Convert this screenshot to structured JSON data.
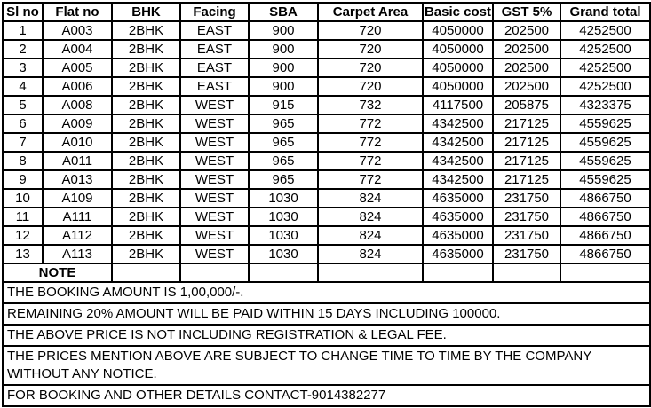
{
  "colors": {
    "background": "#ffffff",
    "border": "#000000",
    "text": "#000000"
  },
  "table": {
    "headers": [
      "Sl no",
      "Flat no",
      "BHK",
      "Facing",
      "SBA",
      "Carpet Area",
      "Basic cost",
      "GST 5%",
      "Grand total"
    ],
    "rows": [
      [
        "1",
        "A003",
        "2BHK",
        "EAST",
        "900",
        "720",
        "4050000",
        "202500",
        "4252500"
      ],
      [
        "2",
        "A004",
        "2BHK",
        "EAST",
        "900",
        "720",
        "4050000",
        "202500",
        "4252500"
      ],
      [
        "3",
        "A005",
        "2BHK",
        "EAST",
        "900",
        "720",
        "4050000",
        "202500",
        "4252500"
      ],
      [
        "4",
        "A006",
        "2BHK",
        "EAST",
        "900",
        "720",
        "4050000",
        "202500",
        "4252500"
      ],
      [
        "5",
        "A008",
        "2BHK",
        "WEST",
        "915",
        "732",
        "4117500",
        "205875",
        "4323375"
      ],
      [
        "6",
        "A009",
        "2BHK",
        "WEST",
        "965",
        "772",
        "4342500",
        "217125",
        "4559625"
      ],
      [
        "7",
        "A010",
        "2BHK",
        "WEST",
        "965",
        "772",
        "4342500",
        "217125",
        "4559625"
      ],
      [
        "8",
        "A011",
        "2BHK",
        "WEST",
        "965",
        "772",
        "4342500",
        "217125",
        "4559625"
      ],
      [
        "9",
        "A013",
        "2BHK",
        "WEST",
        "965",
        "772",
        "4342500",
        "217125",
        "4559625"
      ],
      [
        "10",
        "A109",
        "2BHK",
        "WEST",
        "1030",
        "824",
        "4635000",
        "231750",
        "4866750"
      ],
      [
        "11",
        "A111",
        "2BHK",
        "WEST",
        "1030",
        "824",
        "4635000",
        "231750",
        "4866750"
      ],
      [
        "12",
        "A112",
        "2BHK",
        "WEST",
        "1030",
        "824",
        "4635000",
        "231750",
        "4866750"
      ],
      [
        "13",
        "A113",
        "2BHK",
        "WEST",
        "1030",
        "824",
        "4635000",
        "231750",
        "4866750"
      ]
    ],
    "note_label": "NOTE"
  },
  "notes": [
    "THE BOOKING AMOUNT IS 1,00,000/-.",
    "REMAINING 20% AMOUNT WILL BE PAID WITHIN 15 DAYS INCLUDING 100000.",
    "THE ABOVE PRICE IS NOT INCLUDING REGISTRATION & LEGAL FEE.",
    "THE PRICES MENTION ABOVE ARE SUBJECT TO CHANGE TIME TO TIME BY THE COMPANY WITHOUT ANY NOTICE.",
    "FOR BOOKING AND OTHER DETAILS CONTACT-9014382277"
  ]
}
